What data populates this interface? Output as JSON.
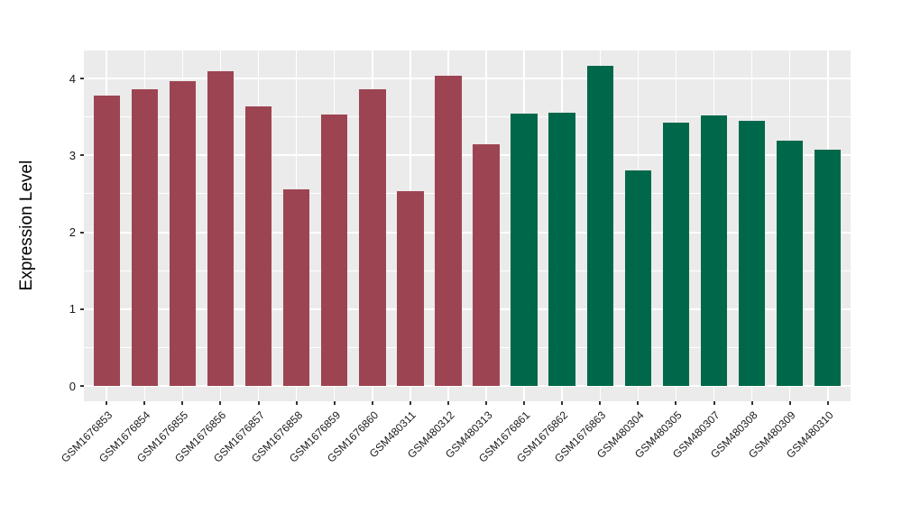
{
  "chart_data": {
    "type": "bar",
    "title": "",
    "xlabel": "",
    "ylabel": "Expression Level",
    "ylim": [
      0,
      4.36
    ],
    "yticks": [
      0,
      1,
      2,
      3,
      4
    ],
    "yticks_minor": [
      0.5,
      1.5,
      2.5,
      3.5
    ],
    "grid": "on",
    "legend": "none",
    "panel_background": "#EBEBEB",
    "gridline_color": "#FFFFFF",
    "categories": [
      "GSM1676853",
      "GSM1676854",
      "GSM1676855",
      "GSM1676856",
      "GSM1676857",
      "GSM1676858",
      "GSM1676859",
      "GSM1676860",
      "GSM480311",
      "GSM480312",
      "GSM480313",
      "GSM1676861",
      "GSM1676862",
      "GSM1676863",
      "GSM480304",
      "GSM480305",
      "GSM480307",
      "GSM480308",
      "GSM480309",
      "GSM480310"
    ],
    "values": [
      3.78,
      3.86,
      3.97,
      4.09,
      3.64,
      2.56,
      3.53,
      3.86,
      2.53,
      4.04,
      3.14,
      3.54,
      3.56,
      4.16,
      2.8,
      3.43,
      3.52,
      3.45,
      3.19,
      3.07
    ],
    "groups": [
      "group1",
      "group1",
      "group1",
      "group1",
      "group1",
      "group1",
      "group1",
      "group1",
      "group1",
      "group1",
      "group1",
      "group2",
      "group2",
      "group2",
      "group2",
      "group2",
      "group2",
      "group2",
      "group2",
      "group2"
    ],
    "group_colors": {
      "group1": "#9D4452",
      "group2": "#00684A"
    }
  }
}
